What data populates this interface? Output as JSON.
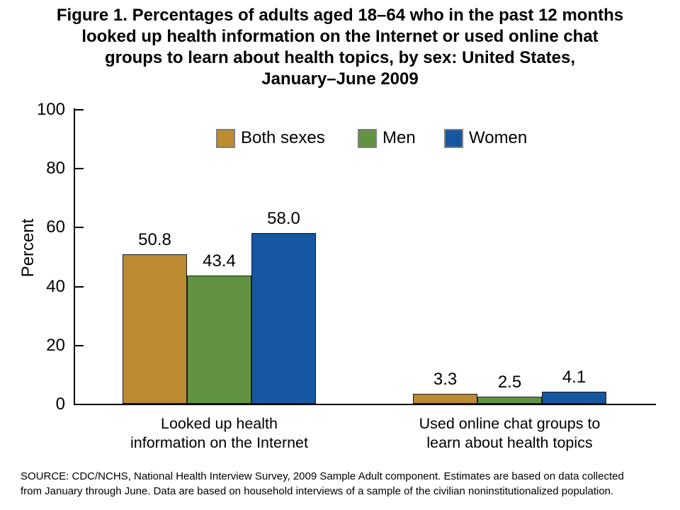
{
  "title": "Figure 1. Percentages of adults aged 18–64 who in the past 12 months\nlooked up health information on the Internet or used online chat\ngroups to learn about health topics, by sex: United States,\nJanuary–June 2009",
  "source_note": "SOURCE: CDC/NCHS, National Health Interview Survey, 2009 Sample Adult component. Estimates are based on data collected\nfrom January through June. Data are based on household interviews of a sample of the civilian noninstitutionalized population.",
  "legend": {
    "items": [
      {
        "label": "Both sexes",
        "color": "#BC8A30"
      },
      {
        "label": "Men",
        "color": "#619343"
      },
      {
        "label": "Women",
        "color": "#1557A0"
      }
    ]
  },
  "chart_data": {
    "type": "bar",
    "title": "Percentages of adults aged 18–64 who in the past 12 months looked up health information on the Internet or used online chat groups to learn about health topics, by sex: United States, January–June 2009",
    "xlabel": "",
    "ylabel": "Percent",
    "ylim": [
      0,
      100
    ],
    "yticks": [
      0,
      20,
      40,
      60,
      80,
      100
    ],
    "grid": false,
    "legend_position": "top",
    "categories": [
      "Looked up health\ninformation on the Internet",
      "Used online chat groups to\nlearn about health topics"
    ],
    "series": [
      {
        "name": "Both sexes",
        "color": "#BC8A30",
        "values": [
          50.8,
          3.3
        ]
      },
      {
        "name": "Men",
        "color": "#619343",
        "values": [
          43.4,
          2.5
        ]
      },
      {
        "name": "Women",
        "color": "#1557A0",
        "values": [
          58.0,
          4.1
        ]
      }
    ],
    "value_labels": [
      [
        "50.8",
        "43.4",
        "58.0"
      ],
      [
        "3.3",
        "2.5",
        "4.1"
      ]
    ]
  }
}
